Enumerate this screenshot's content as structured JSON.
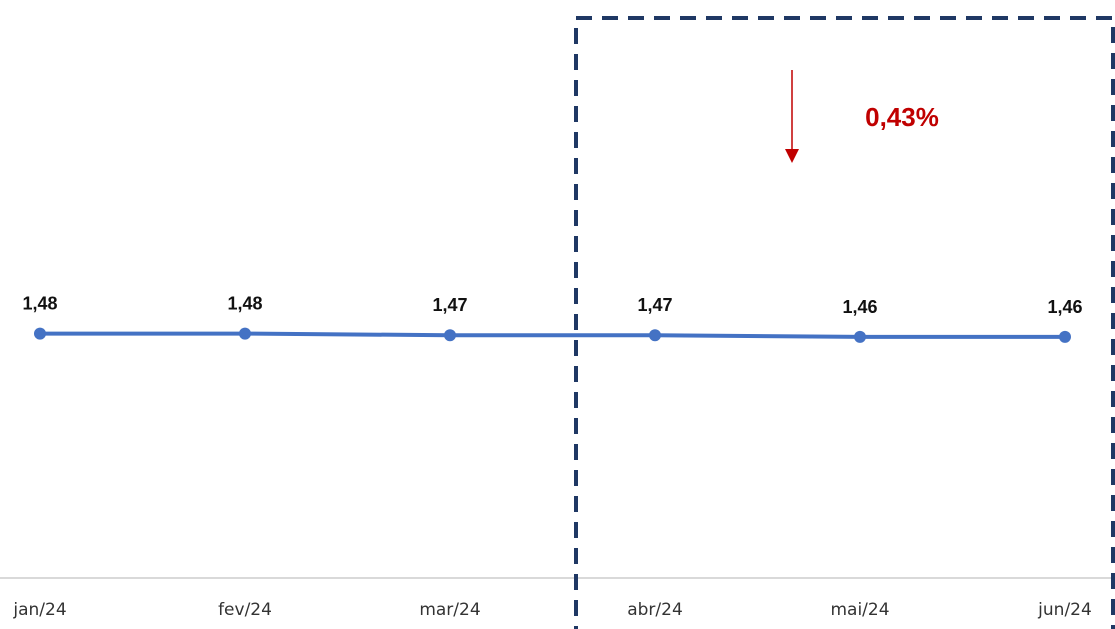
{
  "chart_data": {
    "type": "line",
    "categories": [
      "jan/24",
      "fev/24",
      "mar/24",
      "abr/24",
      "mai/24",
      "jun/24"
    ],
    "values": [
      1.48,
      1.48,
      1.47,
      1.47,
      1.46,
      1.46
    ],
    "data_labels": [
      "1,48",
      "1,48",
      "1,47",
      "1,47",
      "1,46",
      "1,46"
    ],
    "ylim": [
      0,
      3.5
    ],
    "grid": false,
    "series_color": "#4472C4",
    "axis_color": "#D9D9D9",
    "annotation": {
      "text": "0,43%",
      "direction": "down",
      "color": "#C00000",
      "highlight_from": "abr/24",
      "highlight_to": "jun/24",
      "highlight_border_color": "#1F3864"
    }
  }
}
